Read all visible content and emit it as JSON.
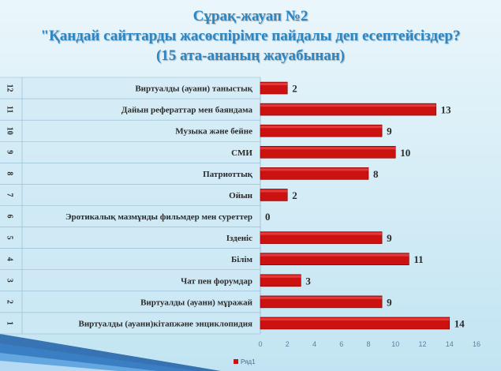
{
  "title": {
    "line1": "Сұрақ-жауап №2",
    "line2": "\"Қандай сайттарды   жасөспірімге пайдалы деп есептейсіздер?",
    "line3": "(15 ата-ананың жауабынан)"
  },
  "chart_data": {
    "type": "bar",
    "orientation": "horizontal",
    "categories": [
      "Виртуалды (ауани)кітапжәне энциклопидия",
      "Виртуалды (ауани) мұражай",
      "Чат пен форумдар",
      "Білім",
      "Ізденіс",
      "Эротикалық мазмұнды фильмдер мен суреттер",
      "Ойын",
      "Патриоттық",
      "СМИ",
      "Музыка және бейне",
      "Дайын рефераттар мен баяндама",
      "Виртуалды (ауани) таныстық"
    ],
    "row_numbers": [
      "1",
      "2",
      "3",
      "4",
      "5",
      "6",
      "7",
      "8",
      "9",
      "10",
      "11",
      "12"
    ],
    "series": [
      {
        "name": "Ряд1",
        "values": [
          14,
          9,
          3,
          11,
          9,
          0,
          2,
          8,
          10,
          9,
          13,
          2
        ],
        "color": "#cc1111"
      }
    ],
    "xlim": [
      0,
      16
    ],
    "xticks": [
      "0",
      "2",
      "4",
      "6",
      "8",
      "10",
      "12",
      "14",
      "16"
    ],
    "grid": false,
    "legend": "bottom",
    "data_labels": true
  },
  "colors": {
    "title": "#2e86c1",
    "bar": "#cc1111",
    "background": "#d3ecf6"
  }
}
